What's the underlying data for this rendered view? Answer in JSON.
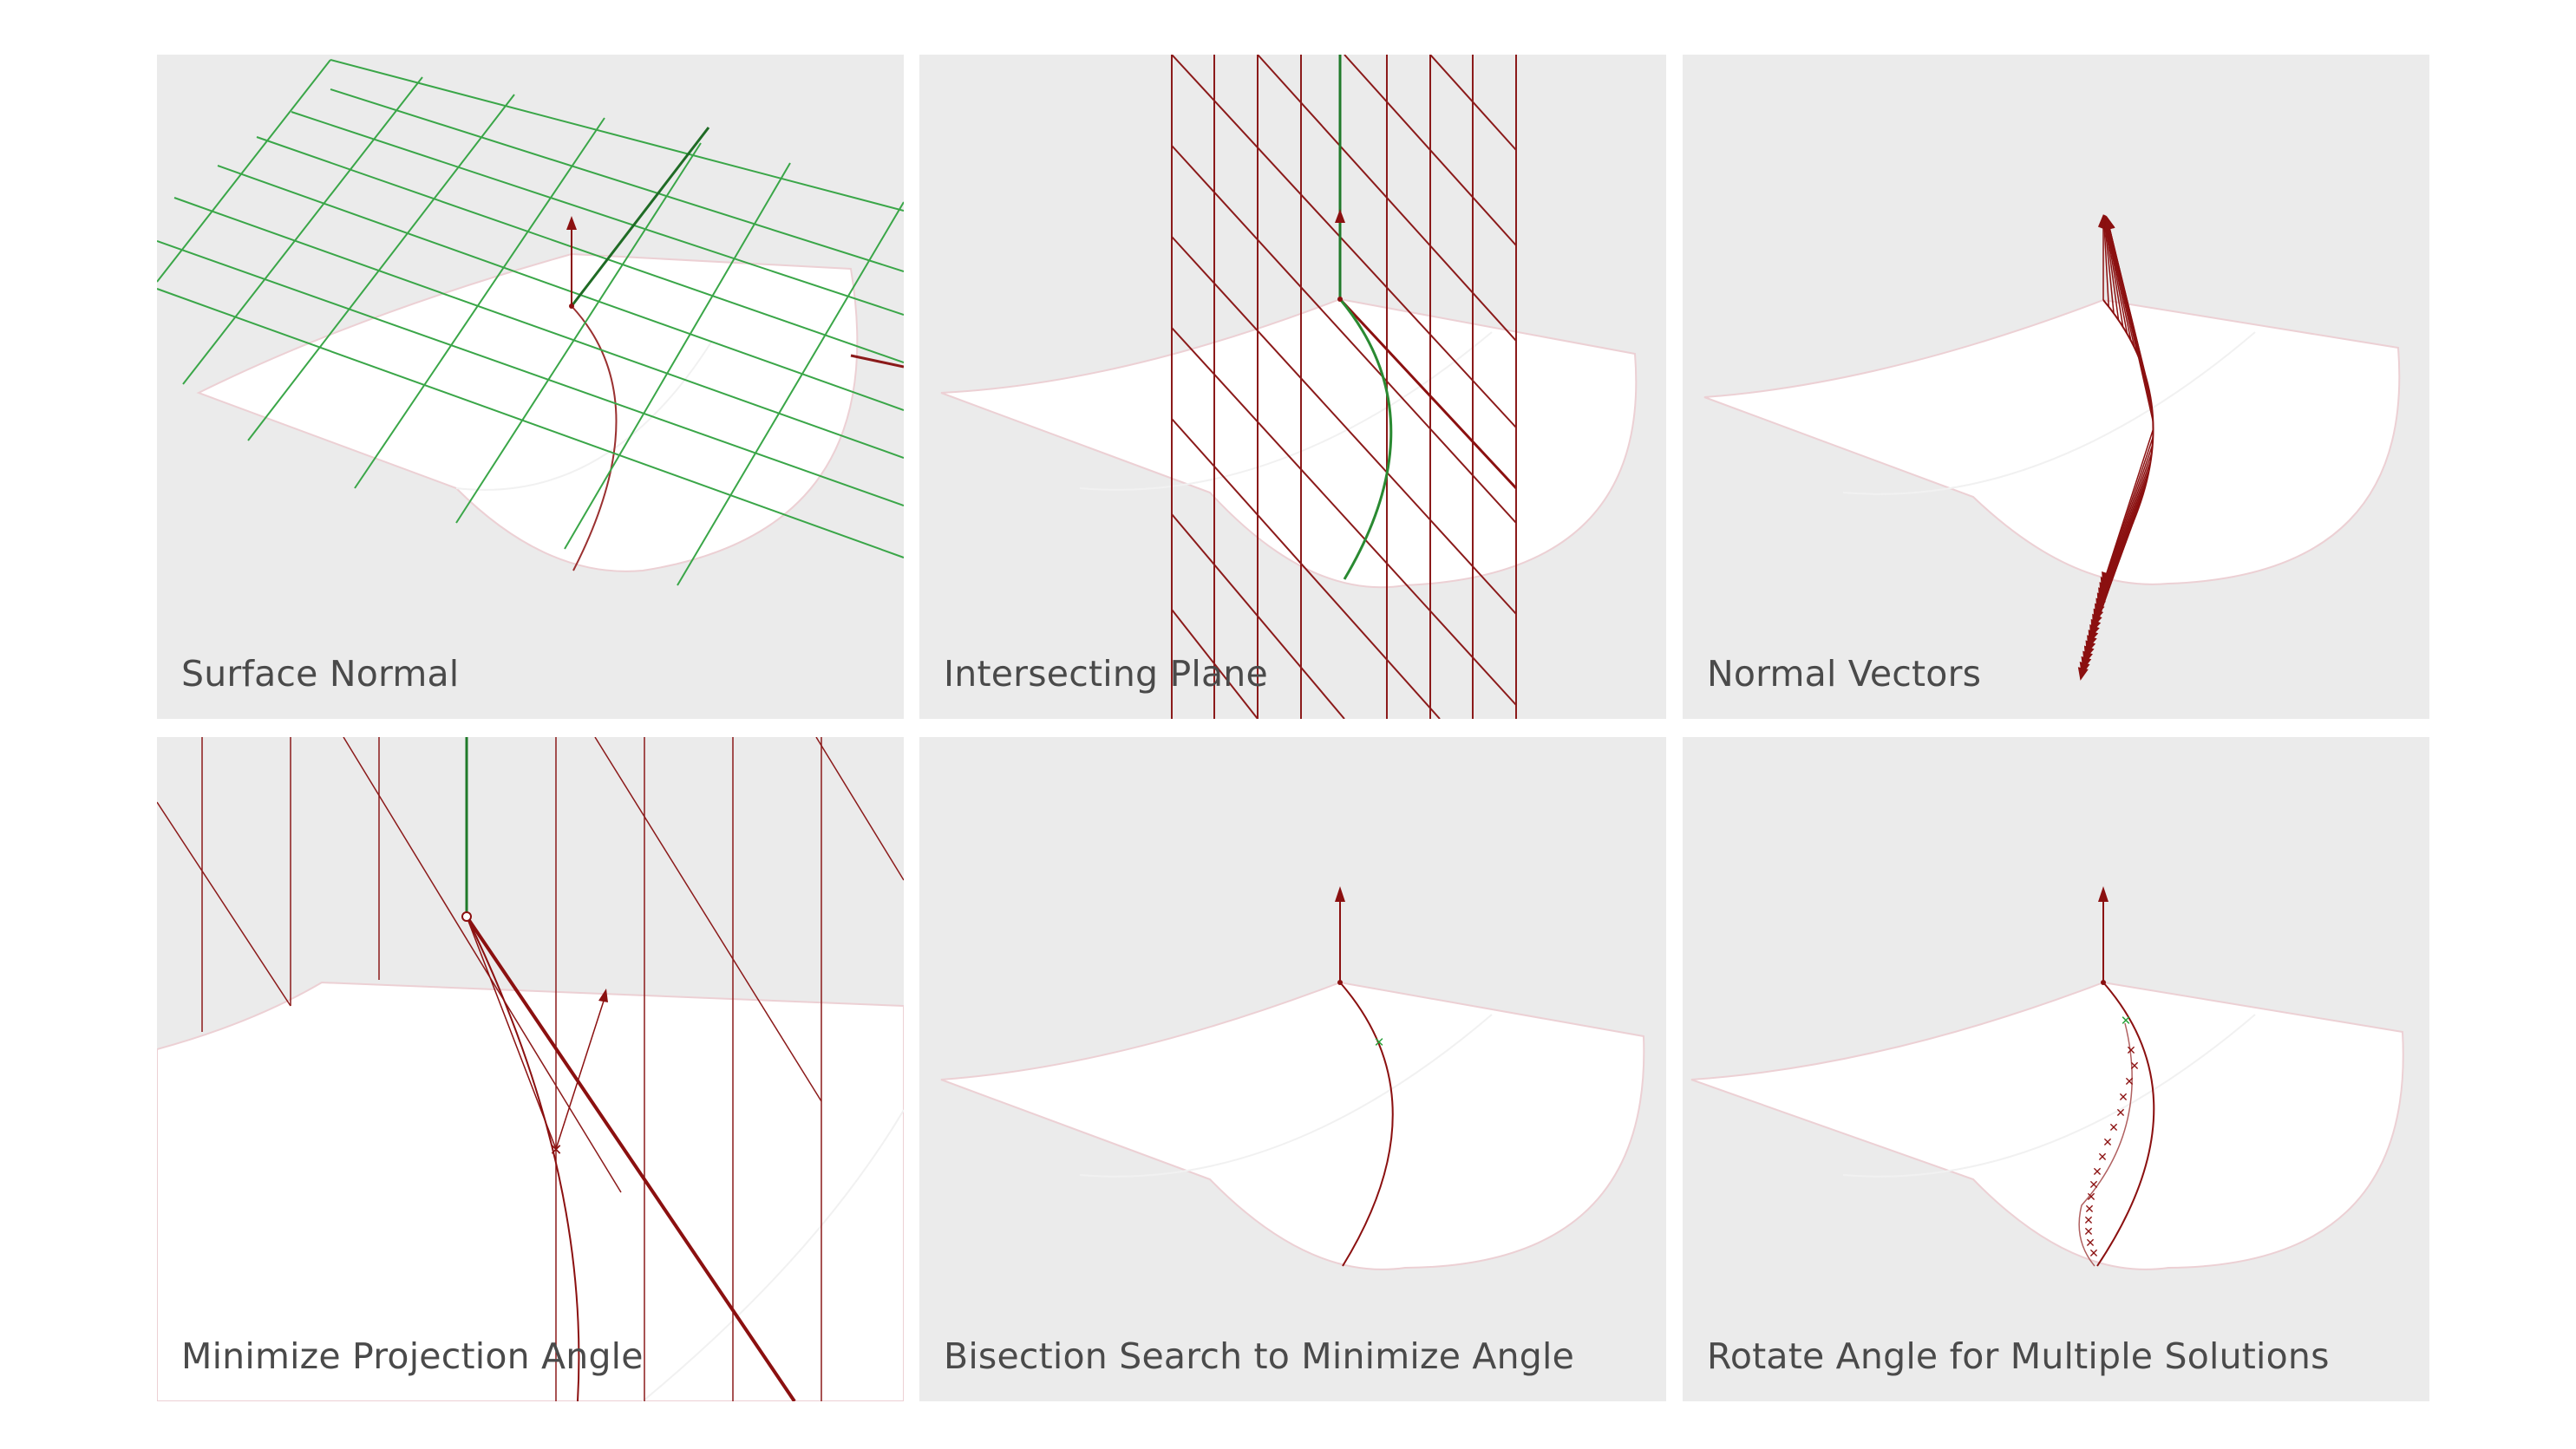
{
  "panels": [
    {
      "caption": "Surface Normal"
    },
    {
      "caption": "Intersecting Plane"
    },
    {
      "caption": "Normal Vectors"
    },
    {
      "caption": "Minimize Projection Angle"
    },
    {
      "caption": "Bisection Search to Minimize Angle"
    },
    {
      "caption": "Rotate Angle for Multiple Solutions"
    }
  ],
  "colors": {
    "panel_background": "#ebebeb",
    "surface": "#ffffff",
    "surface_edge": "#e7c8cc",
    "grid_green": "#3aa648",
    "grid_red": "#8b1a1a",
    "accent_red": "#8b1010",
    "accent_green": "#1f7a2a",
    "caption_text": "#4a4a4a"
  }
}
